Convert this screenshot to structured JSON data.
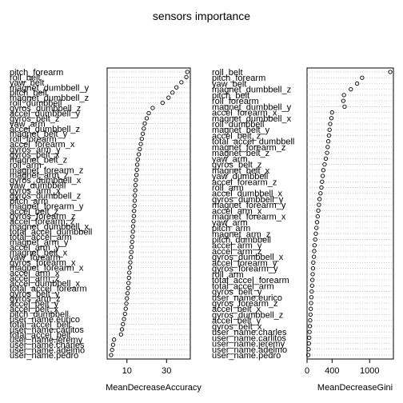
{
  "chart_data": {
    "type": "dotchart",
    "title": "sensors importance",
    "panels": [
      {
        "name": "accuracy",
        "xlabel": "MeanDecreaseAccuracy",
        "xlim": [
          0,
          42
        ],
        "xticks": [
          10,
          30
        ],
        "labels": [
          "pitch_forearm",
          "roll_belt",
          "yaw_belt",
          "magnet_dumbbell_y",
          "pitch_belt",
          "magnet_dumbbell_z",
          "roll_dumbbell",
          "gyros_dumbbell_z",
          "accel_dumbbell_y",
          "gyros_belt_z",
          "yaw_arm",
          "accel_dumbbell_z",
          "magnet_belt_y",
          "roll_forearm",
          "accel_forearm_x",
          "gyros_arm_y",
          "gyros_belt_x",
          "magnet_belt_z",
          "roll_arm",
          "magnet_forearm_z",
          "magnet_arm_z",
          "gyros_dumbbell_x",
          "yaw_dumbbell",
          "gyros_arm_x",
          "gyros_dumbbell_z",
          "pitch_arm",
          "magnet_forearm_y",
          "accel_belt_z",
          "gyros_forearm_z",
          "accel_forearm_z",
          "magnet_dumbbell_x",
          "total_accel_dumbbell",
          "total_accel_arm",
          "magnet_arm_y",
          "accel_arm_y",
          "magnet_belt_x",
          "yaw_forearm",
          "gyros_forearm_x",
          "magnet_forearm_x",
          "accel_arm_x",
          "accel_arm_z",
          "accel_dumbbell_x",
          "total_accel_forearm",
          "gyros_belt_y",
          "gyros_arm_z",
          "accel_belt_y",
          "accel_belt_x",
          "pitch_dumbbell",
          "user_name.eurico",
          "total_accel_belt",
          "user_name.carlitos",
          "total_accel_belt",
          "user_name.jeremy",
          "user_name.charles",
          "user_name.adelmo",
          "user_name.pedro"
        ],
        "values": [
          40.5,
          40.0,
          37.5,
          35.0,
          33.0,
          31.0,
          28.0,
          23.0,
          21.0,
          20.0,
          19.0,
          18.5,
          18.0,
          17.5,
          17.0,
          16.5,
          16.0,
          15.5,
          15.2,
          15.0,
          14.8,
          14.5,
          14.3,
          14.2,
          14.0,
          13.9,
          13.8,
          13.6,
          13.5,
          13.3,
          13.1,
          13.0,
          12.8,
          12.6,
          12.4,
          12.2,
          12.0,
          11.7,
          11.5,
          11.2,
          11.0,
          10.8,
          10.6,
          10.3,
          10.0,
          9.7,
          9.4,
          9.0,
          8.5,
          8.0,
          7.5,
          7.0,
          3.5,
          3.0,
          2.5,
          2.0
        ]
      },
      {
        "name": "gini",
        "xlabel": "MeanDecreaseGini",
        "xlim": [
          0,
          1380
        ],
        "xticks": [
          0,
          400,
          1000
        ],
        "labels": [
          "roll_belt",
          "pitch_forearm",
          "yaw_belt",
          "magnet_dumbbell_z",
          "pitch_belt",
          "roll_forearm",
          "magnet_dumbbell_y",
          "accel_forearm_x",
          "magnet_dumbbell_x",
          "roll_dumbbell",
          "magnet_belt_y",
          "accel_belt_z",
          "total_accel_dumbbell",
          "magnet_forearm_z",
          "magnet_belt_z",
          "yaw_arm",
          "gyros_belt_z",
          "magnet_belt_x",
          "yaw_dumbbell",
          "accel_forearm_z",
          "roll_arm",
          "accel_dumbbell_x",
          "gyros_dumbbell_y",
          "magnet_forearm_y",
          "accel_arm_x",
          "magnet_forearm_x",
          "yaw_arm",
          "pitch_arm",
          "magnet_arm_z",
          "pitch_dumbbell",
          "accel_arm_y",
          "accel_arm_z",
          "gyros_dumbbell_x",
          "accel_forearm_y",
          "gyros_forearm_y",
          "roll_arm",
          "total_accel_forearm",
          "total_accel_arm",
          "gyros_belt_y",
          "user_name.eurico",
          "gyros_forearm_z",
          "accel_belt_x",
          "gyros_dumbbell_z",
          "accel_belt_y",
          "gyros_belt_x",
          "user_name.charles",
          "user_name.carlitos",
          "user_name.jeremy",
          "user_name.adelmo",
          "user_name.pedro"
        ],
        "values": [
          1330,
          880,
          800,
          700,
          590,
          580,
          600,
          400,
          390,
          370,
          360,
          350,
          340,
          330,
          320,
          300,
          280,
          260,
          250,
          240,
          230,
          215,
          200,
          190,
          180,
          170,
          160,
          150,
          140,
          130,
          120,
          115,
          110,
          100,
          95,
          90,
          85,
          80,
          75,
          70,
          65,
          60,
          55,
          50,
          45,
          40,
          35,
          30,
          25,
          20
        ]
      }
    ]
  }
}
